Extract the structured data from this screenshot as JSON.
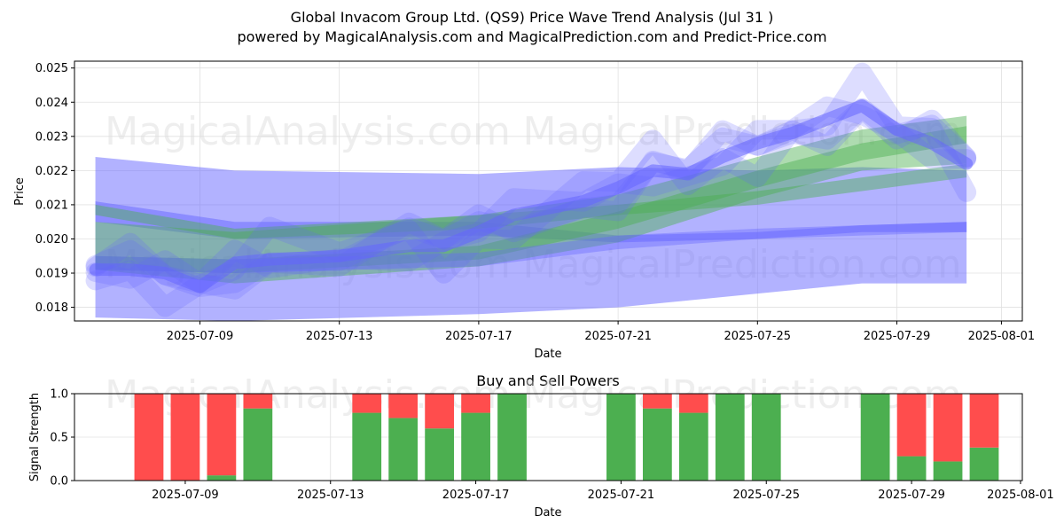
{
  "title_line1": "Global Invacom Group Ltd. (QS9) Price Wave Trend Analysis (Jul 31 )",
  "title_line2": "powered by MagicalAnalysis.com and MagicalPrediction.com and Predict-Price.com",
  "watermarks": [
    "MagicalAnalysis.com",
    "MagicalPrediction.com"
  ],
  "colors": {
    "blue_band": "#6666ff",
    "green_band": "#4caf50",
    "buy": "#4caf50",
    "sell": "#ff4d4d",
    "grid": "#e0e0e0"
  },
  "chart_data": [
    {
      "type": "area",
      "title": "",
      "xlabel": "Date",
      "ylabel": "Price",
      "x_range": [
        "2025-07-05",
        "2025-08-01"
      ],
      "ylim": [
        0.0176,
        0.0252
      ],
      "xticks": [
        "2025-07-09",
        "2025-07-13",
        "2025-07-17",
        "2025-07-21",
        "2025-07-25",
        "2025-07-29",
        "2025-08-01"
      ],
      "yticks": [
        0.018,
        0.019,
        0.02,
        0.021,
        0.022,
        0.023,
        0.024,
        0.025
      ],
      "grid": true,
      "bands": [
        {
          "color": "blue",
          "opacity": 0.5,
          "x": [
            "2025-07-06",
            "2025-07-10",
            "2025-07-17",
            "2025-07-21",
            "2025-07-25",
            "2025-07-28",
            "2025-07-31"
          ],
          "upper": [
            0.0224,
            0.022,
            0.0219,
            0.0221,
            0.022,
            0.0221,
            0.022
          ],
          "lower": [
            0.0177,
            0.0176,
            0.0178,
            0.018,
            0.0184,
            0.0187,
            0.0187
          ]
        },
        {
          "color": "blue",
          "opacity": 0.5,
          "x": [
            "2025-07-06",
            "2025-07-10",
            "2025-07-17",
            "2025-07-21",
            "2025-07-25",
            "2025-07-28",
            "2025-07-31"
          ],
          "upper": [
            0.0211,
            0.0205,
            0.0205,
            0.0201,
            0.0202,
            0.0204,
            0.0205
          ],
          "lower": [
            0.0205,
            0.02,
            0.0201,
            0.0199,
            0.02,
            0.0202,
            0.0202
          ]
        },
        {
          "color": "green",
          "opacity": 0.45,
          "x": [
            "2025-07-06",
            "2025-07-10",
            "2025-07-17",
            "2025-07-21",
            "2025-07-25",
            "2025-07-28",
            "2025-07-31"
          ],
          "upper": [
            0.0205,
            0.0202,
            0.0207,
            0.0213,
            0.0224,
            0.0232,
            0.0236
          ],
          "lower": [
            0.0191,
            0.0187,
            0.0192,
            0.0199,
            0.0212,
            0.022,
            0.0222
          ]
        },
        {
          "color": "green",
          "opacity": 0.45,
          "x": [
            "2025-07-06",
            "2025-07-10",
            "2025-07-17",
            "2025-07-21",
            "2025-07-25",
            "2025-07-28",
            "2025-07-31"
          ],
          "upper": [
            0.021,
            0.0203,
            0.0207,
            0.021,
            0.0214,
            0.0218,
            0.0222
          ],
          "lower": [
            0.0207,
            0.02,
            0.0203,
            0.0207,
            0.021,
            0.0214,
            0.0218
          ]
        },
        {
          "color": "green",
          "opacity": 0.45,
          "x": [
            "2025-07-06",
            "2025-07-10",
            "2025-07-17",
            "2025-07-21",
            "2025-07-25",
            "2025-07-28",
            "2025-07-31"
          ],
          "upper": [
            0.0195,
            0.0194,
            0.0198,
            0.0208,
            0.022,
            0.0228,
            0.0233
          ],
          "lower": [
            0.0191,
            0.019,
            0.0194,
            0.0203,
            0.0215,
            0.0223,
            0.0228
          ]
        },
        {
          "color": "blue",
          "opacity": 0.4,
          "x": [
            "2025-07-06",
            "2025-07-10",
            "2025-07-17",
            "2025-07-21",
            "2025-07-25",
            "2025-07-28",
            "2025-07-31"
          ],
          "upper": [
            0.0195,
            0.0194,
            0.0196,
            0.0201,
            0.0203,
            0.0204,
            0.0205
          ],
          "lower": [
            0.0191,
            0.019,
            0.0192,
            0.0197,
            0.02,
            0.0201,
            0.0202
          ]
        }
      ],
      "waves": {
        "color": "blue",
        "x": [
          "2025-07-06",
          "2025-07-07",
          "2025-07-08",
          "2025-07-09",
          "2025-07-10",
          "2025-07-11",
          "2025-07-13",
          "2025-07-15",
          "2025-07-16",
          "2025-07-17",
          "2025-07-18",
          "2025-07-20",
          "2025-07-21",
          "2025-07-22",
          "2025-07-23",
          "2025-07-24",
          "2025-07-25",
          "2025-07-26",
          "2025-07-27",
          "2025-07-28",
          "2025-07-29",
          "2025-07-30",
          "2025-07-31"
        ],
        "y": [
          0.0191,
          0.0191,
          0.019,
          0.0186,
          0.0193,
          0.0194,
          0.0195,
          0.0198,
          0.0198,
          0.0202,
          0.0207,
          0.0211,
          0.0215,
          0.022,
          0.0219,
          0.0224,
          0.0228,
          0.0231,
          0.0235,
          0.0239,
          0.0232,
          0.0228,
          0.0222
        ]
      }
    },
    {
      "type": "bar",
      "title": "Buy and Sell Powers",
      "xlabel": "Date",
      "ylabel": "Signal Strength",
      "ylim": [
        0,
        1.0
      ],
      "yticks": [
        0.0,
        0.5,
        1.0
      ],
      "xticks": [
        "2025-07-09",
        "2025-07-13",
        "2025-07-17",
        "2025-07-21",
        "2025-07-25",
        "2025-07-29",
        "2025-08-01"
      ],
      "grid": true,
      "series": [
        {
          "name": "buy",
          "color": "green"
        },
        {
          "name": "sell",
          "color": "red"
        }
      ],
      "bars": [
        {
          "date": "2025-07-08",
          "buy": 0.0
        },
        {
          "date": "2025-07-09",
          "buy": 0.0
        },
        {
          "date": "2025-07-10",
          "buy": 0.06
        },
        {
          "date": "2025-07-11",
          "buy": 0.83
        },
        {
          "date": "2025-07-14",
          "buy": 0.78
        },
        {
          "date": "2025-07-15",
          "buy": 0.72
        },
        {
          "date": "2025-07-16",
          "buy": 0.6
        },
        {
          "date": "2025-07-17",
          "buy": 0.78
        },
        {
          "date": "2025-07-18",
          "buy": 1.0
        },
        {
          "date": "2025-07-21",
          "buy": 1.0
        },
        {
          "date": "2025-07-22",
          "buy": 0.83
        },
        {
          "date": "2025-07-23",
          "buy": 0.78
        },
        {
          "date": "2025-07-24",
          "buy": 1.0
        },
        {
          "date": "2025-07-25",
          "buy": 1.0
        },
        {
          "date": "2025-07-28",
          "buy": 1.0
        },
        {
          "date": "2025-07-29",
          "buy": 0.28
        },
        {
          "date": "2025-07-30",
          "buy": 0.22
        },
        {
          "date": "2025-07-31",
          "buy": 0.38
        }
      ]
    }
  ]
}
